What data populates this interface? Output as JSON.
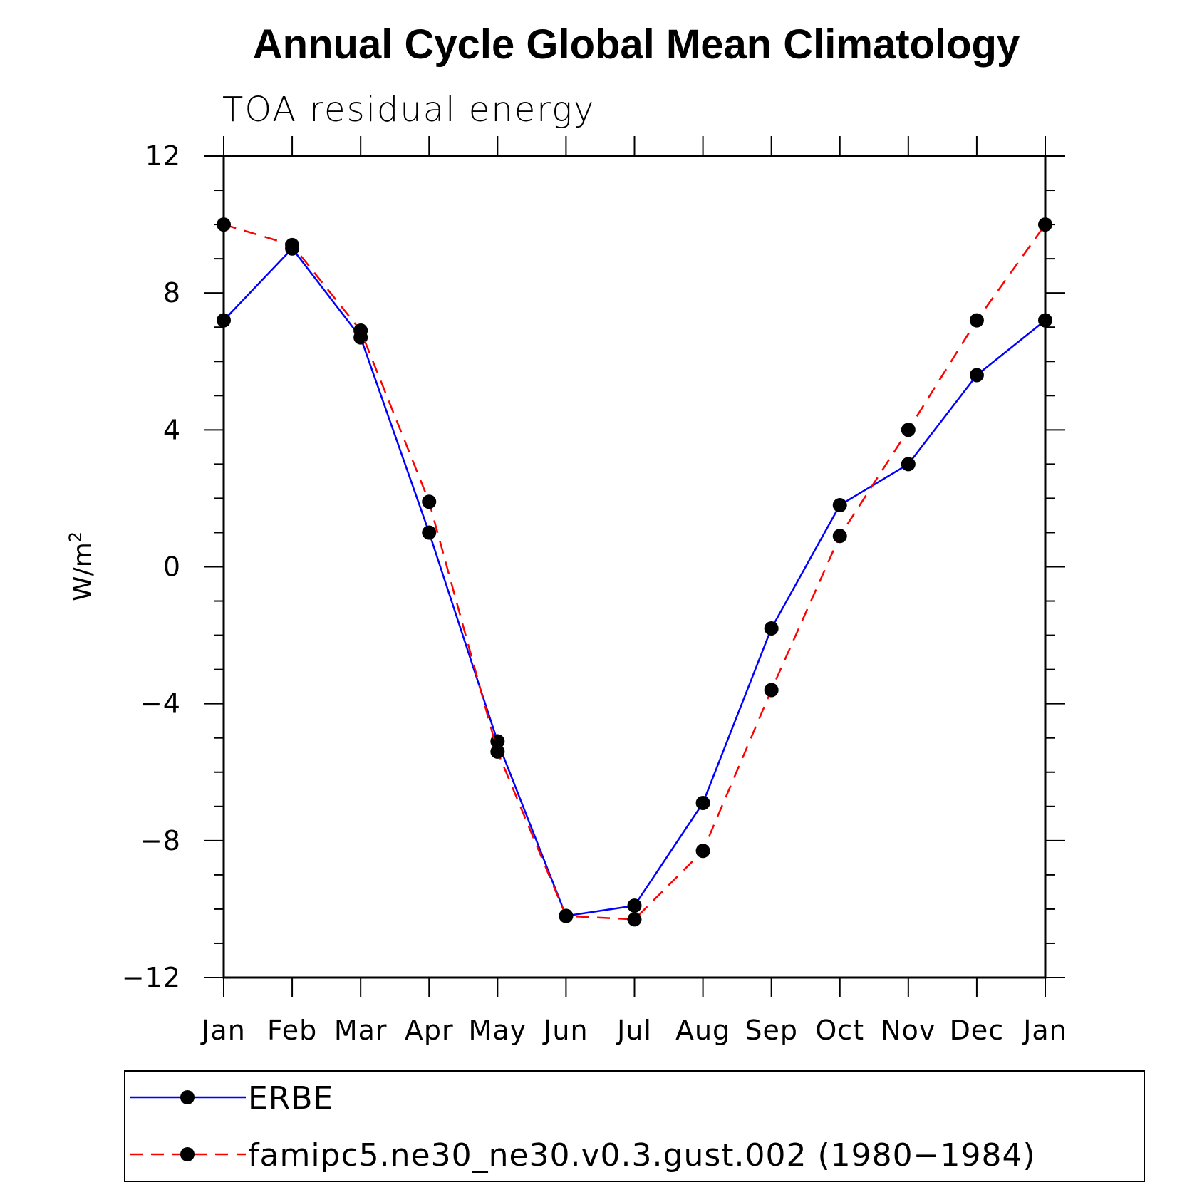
{
  "chart_data": {
    "type": "line",
    "title": "Annual Cycle Global Mean Climatology",
    "subtitle": "TOA residual energy",
    "ylabel_base": "W/m",
    "ylabel_sup": "2",
    "xlabel": "",
    "categories": [
      "Jan",
      "Feb",
      "Mar",
      "Apr",
      "May",
      "Jun",
      "Jul",
      "Aug",
      "Sep",
      "Oct",
      "Nov",
      "Dec",
      "Jan"
    ],
    "ylim": [
      -12,
      12
    ],
    "yticks": [
      12,
      8,
      4,
      0,
      -4,
      -8,
      -12
    ],
    "ytick_labels": [
      "12",
      "8",
      "4",
      "0",
      "−4",
      "−8",
      "−12"
    ],
    "grid": false,
    "legend_position": "bottom",
    "series": [
      {
        "name": "ERBE",
        "color": "#0000ff",
        "dash": "solid",
        "values": [
          7.2,
          9.3,
          6.7,
          1.0,
          -5.1,
          -10.2,
          -9.9,
          -6.9,
          -1.8,
          1.8,
          3.0,
          5.6,
          7.2
        ]
      },
      {
        "name": "famipc5.ne30_ne30.v0.3.gust.002 (1980−1984)",
        "color": "#ff0000",
        "dash": "dashed",
        "values": [
          10.0,
          9.4,
          6.9,
          1.9,
          -5.4,
          -10.2,
          -10.3,
          -8.3,
          -3.6,
          0.9,
          4.0,
          7.2,
          10.0
        ]
      }
    ]
  }
}
